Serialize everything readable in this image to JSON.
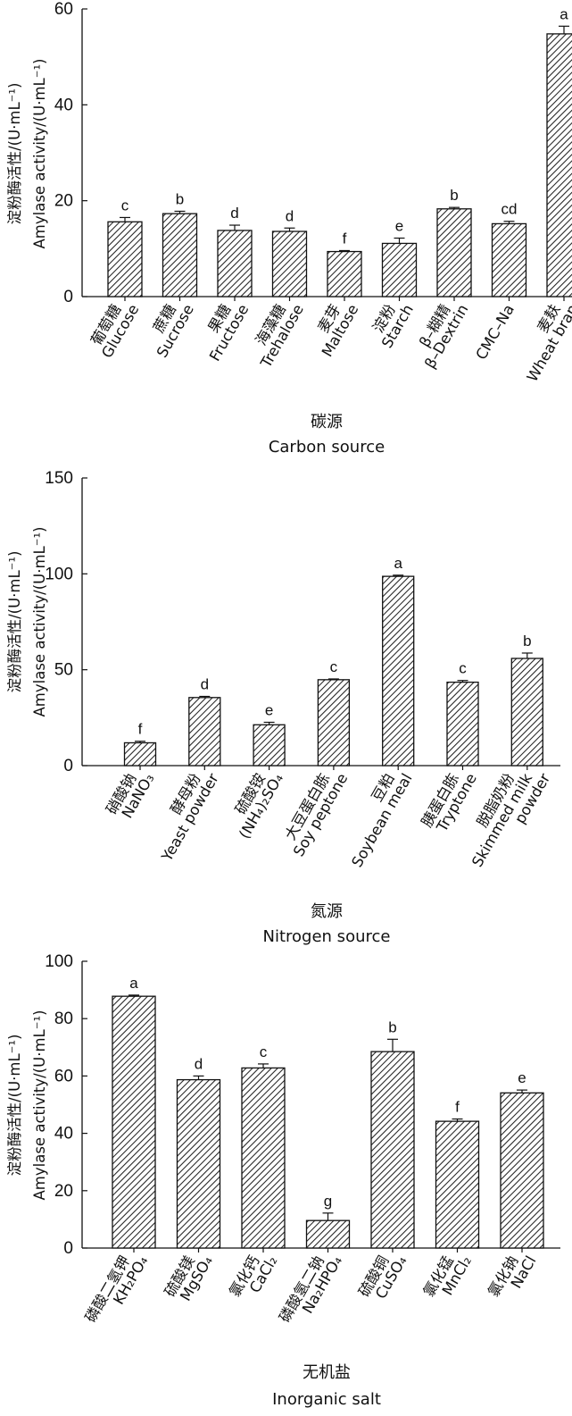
{
  "chart_data": [
    {
      "type": "bar",
      "ylabel": "淀粉酶活性/(U·mL⁻¹)",
      "ylabel2": "Amylase activity/(U·mL⁻¹)",
      "xlabel": "碳源",
      "xlabel2": "Carbon source",
      "ylim": [
        0,
        60
      ],
      "yticks": [
        0,
        20,
        40,
        60
      ],
      "categories": [
        [
          "葡萄糖",
          "Glucose"
        ],
        [
          "蔗糖",
          "Sucrose"
        ],
        [
          "果糖",
          "Fructose"
        ],
        [
          "海藻糖",
          "Trehalose"
        ],
        [
          "麦芽",
          "Maltose"
        ],
        [
          "淀粉",
          "Starch"
        ],
        [
          "β–糊精",
          "β–Dextrin"
        ],
        [
          "CMC–Na"
        ],
        [
          "麦麸",
          "Wheat bran"
        ]
      ],
      "values": [
        15.6,
        17.3,
        13.8,
        13.6,
        9.4,
        11.1,
        18.3,
        15.2,
        54.8
      ],
      "errors": [
        0.9,
        0.5,
        1.1,
        0.7,
        0.2,
        1.1,
        0.3,
        0.5,
        1.6
      ],
      "significance": [
        "c",
        "b",
        "d",
        "d",
        "f",
        "e",
        "b",
        "cd",
        "a"
      ]
    },
    {
      "type": "bar",
      "ylabel": "淀粉酶活性/(U·mL⁻¹)",
      "ylabel2": "Amylase activity/(U·mL⁻¹)",
      "xlabel": "氮源",
      "xlabel2": "Nitrogen source",
      "ylim": [
        0,
        150
      ],
      "yticks": [
        0,
        50,
        100,
        150
      ],
      "categories": [
        [
          "硝酸钠",
          "NaNO₃"
        ],
        [
          "酵母粉",
          "Yeast powder"
        ],
        [
          "硫酸铵",
          "(NH₄)₂SO₄"
        ],
        [
          "大豆蛋白胨",
          "Soy peptone"
        ],
        [
          "豆粕",
          "Soybean meal"
        ],
        [
          "胰蛋白胨",
          "Tryptone"
        ],
        [
          "脱脂奶粉",
          "Skimmed milk",
          "powder"
        ]
      ],
      "values": [
        11.9,
        35.5,
        21.3,
        44.8,
        98.7,
        43.5,
        55.9
      ],
      "errors": [
        0.8,
        0.6,
        1.3,
        0.4,
        0.6,
        0.9,
        2.8
      ],
      "significance": [
        "f",
        "d",
        "e",
        "c",
        "a",
        "c",
        "b"
      ]
    },
    {
      "type": "bar",
      "ylabel": "淀粉酶活性/(U·mL⁻¹)",
      "ylabel2": "Amylase activity/(U·mL⁻¹)",
      "xlabel": "无机盐",
      "xlabel2": "Inorganic salt",
      "ylim": [
        0,
        100
      ],
      "yticks": [
        0,
        20,
        40,
        60,
        80,
        100
      ],
      "categories": [
        [
          "磷酸二氢钾",
          "KH₂PO₄"
        ],
        [
          "硫酸镁",
          "MgSO₄"
        ],
        [
          "氯化钙",
          "CaCl₂"
        ],
        [
          "磷酸氢二钠",
          "Na₂HPO₄"
        ],
        [
          "硫酸铜",
          "CuSO₄"
        ],
        [
          "氯化锰",
          "MnCl₂"
        ],
        [
          "氯化钠",
          "NaCl"
        ]
      ],
      "values": [
        87.8,
        58.7,
        62.8,
        9.6,
        68.5,
        44.2,
        54.1
      ],
      "errors": [
        0.4,
        1.3,
        1.4,
        2.6,
        4.3,
        0.8,
        1.0
      ],
      "significance": [
        "a",
        "d",
        "c",
        "g",
        "b",
        "f",
        "e"
      ]
    }
  ]
}
